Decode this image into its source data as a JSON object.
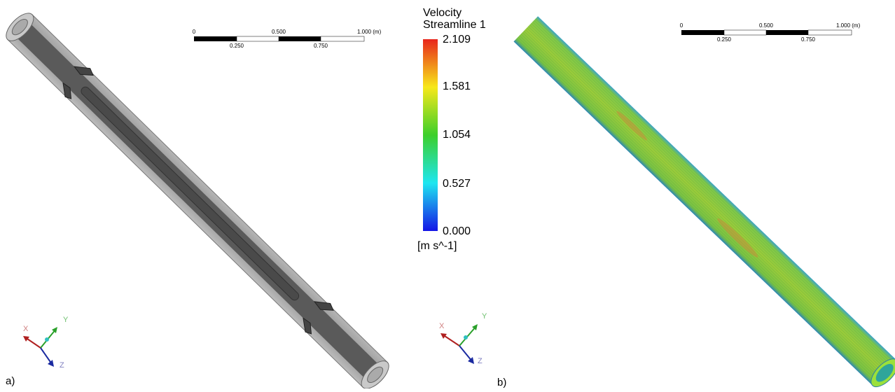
{
  "panels": [
    {
      "label": "a)",
      "scale_bar": {
        "top": [
          "0",
          "0.500",
          "1.000 (m)"
        ],
        "bottom": [
          "0.250",
          "0.750"
        ]
      },
      "axes": {
        "x": "X",
        "y": "Y",
        "z": "Z"
      }
    },
    {
      "label": "b)",
      "scale_bar": {
        "top": [
          "0",
          "0.500",
          "1.000 (m)"
        ],
        "bottom": [
          "0.250",
          "0.750"
        ]
      },
      "axes": {
        "x": "X",
        "y": "Y",
        "z": "Z"
      }
    }
  ],
  "legend": {
    "title": "Velocity",
    "subtitle": "Streamline 1",
    "ticks": [
      "2.109",
      "1.581",
      "1.054",
      "0.527",
      "0.000"
    ],
    "unit": "[m s^-1]"
  }
}
